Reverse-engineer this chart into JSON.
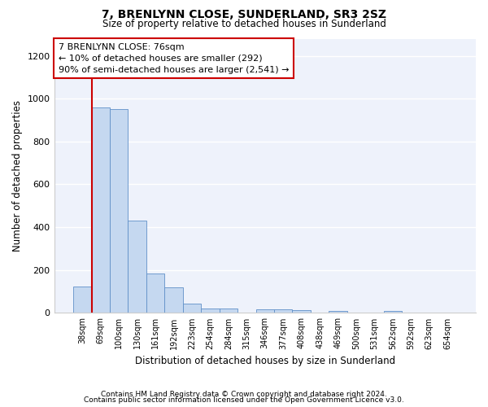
{
  "title": "7, BRENLYNN CLOSE, SUNDERLAND, SR3 2SZ",
  "subtitle": "Size of property relative to detached houses in Sunderland",
  "xlabel": "Distribution of detached houses by size in Sunderland",
  "ylabel": "Number of detached properties",
  "categories": [
    "38sqm",
    "69sqm",
    "100sqm",
    "130sqm",
    "161sqm",
    "192sqm",
    "223sqm",
    "254sqm",
    "284sqm",
    "315sqm",
    "346sqm",
    "377sqm",
    "408sqm",
    "438sqm",
    "469sqm",
    "500sqm",
    "531sqm",
    "562sqm",
    "592sqm",
    "623sqm",
    "654sqm"
  ],
  "values": [
    125,
    960,
    950,
    430,
    185,
    120,
    45,
    20,
    20,
    0,
    15,
    18,
    12,
    0,
    8,
    0,
    0,
    8,
    0,
    0,
    0
  ],
  "bar_color": "#c5d8f0",
  "bar_edge_color": "#6090c8",
  "highlight_bar_edge_color": "#cc0000",
  "highlight_bar_index": 1,
  "annotation_box_text": "7 BRENLYNN CLOSE: 76sqm\n← 10% of detached houses are smaller (292)\n90% of semi-detached houses are larger (2,541) →",
  "ylim": [
    0,
    1280
  ],
  "yticks": [
    0,
    200,
    400,
    600,
    800,
    1000,
    1200
  ],
  "bg_color": "#eef2fb",
  "grid_color": "#ffffff",
  "footer_line1": "Contains HM Land Registry data © Crown copyright and database right 2024.",
  "footer_line2": "Contains public sector information licensed under the Open Government Licence v3.0."
}
